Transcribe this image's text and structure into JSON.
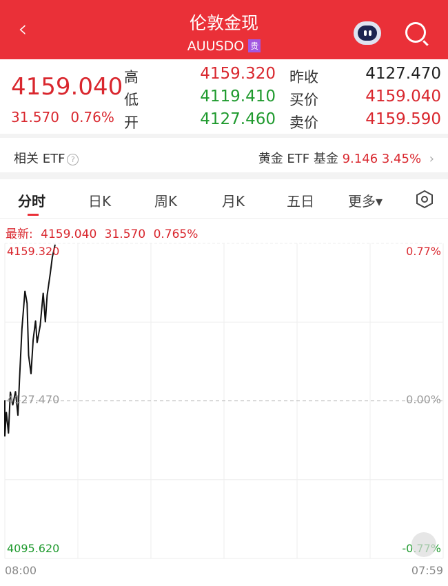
{
  "header": {
    "title": "伦敦金现",
    "code": "AUUSDO",
    "badge": "贵",
    "back_icon": "chevron-left-icon",
    "robot_icon": "robot-assistant-icon",
    "search_icon": "search-icon"
  },
  "quote": {
    "price": "4159.040",
    "change": "31.570",
    "change_pct": "0.76%",
    "fields": [
      {
        "label": "高",
        "value": "4159.320",
        "color": "red"
      },
      {
        "label": "低",
        "value": "4119.410",
        "color": "green"
      },
      {
        "label": "开",
        "value": "4127.460",
        "color": "green"
      },
      {
        "label": "昨收",
        "value": "4127.470",
        "color": "black"
      },
      {
        "label": "买价",
        "value": "4159.040",
        "color": "red"
      },
      {
        "label": "卖价",
        "value": "4159.590",
        "color": "red"
      }
    ]
  },
  "etf": {
    "label": "相关 ETF",
    "help": "?",
    "name": "黄金 ETF 基金",
    "price": "9.146",
    "pct": "3.45%",
    "arrow": "›"
  },
  "tabs": [
    "分时",
    "日K",
    "周K",
    "月K",
    "五日",
    "更多▾"
  ],
  "latest": {
    "label": "最新:",
    "price": "4159.040",
    "change": "31.570",
    "pct": "0.765%"
  },
  "colors": {
    "up": "#d9272e",
    "down": "#1f9a2e",
    "header": "#ea3038"
  },
  "chart_data": {
    "type": "line",
    "x_start": "08:00",
    "x_end": "07:59",
    "ylim": [
      4095.62,
      4159.32
    ],
    "base": 4127.47,
    "y_labels": {
      "top": "4159.320",
      "mid": "4127.470",
      "bottom": "4095.620"
    },
    "pct_labels": {
      "top": "0.77%",
      "mid": "0.00%",
      "bottom": "-0.77%"
    },
    "x_labels": [
      "08:00",
      "07:59"
    ],
    "grid": true,
    "times": [
      "08:00",
      "08:00",
      "08:05",
      "08:12",
      "08:18",
      "08:26",
      "08:35",
      "08:43",
      "08:48",
      "08:56",
      "09:06",
      "09:13",
      "09:18",
      "09:26",
      "09:33",
      "09:41",
      "09:46",
      "09:56",
      "10:06",
      "10:13",
      "10:19",
      "10:29",
      "10:36",
      "10:45"
    ],
    "prices": [
      4127.6,
      4120.3,
      4125.2,
      4120.9,
      4129.3,
      4126.6,
      4129.4,
      4124.5,
      4131.5,
      4142.0,
      4149.7,
      4147.2,
      4136.7,
      4132.9,
      4139.8,
      4143.7,
      4139.2,
      4142.7,
      4149.3,
      4143.4,
      4148.8,
      4153.2,
      4156.5,
      4159.04
    ]
  }
}
